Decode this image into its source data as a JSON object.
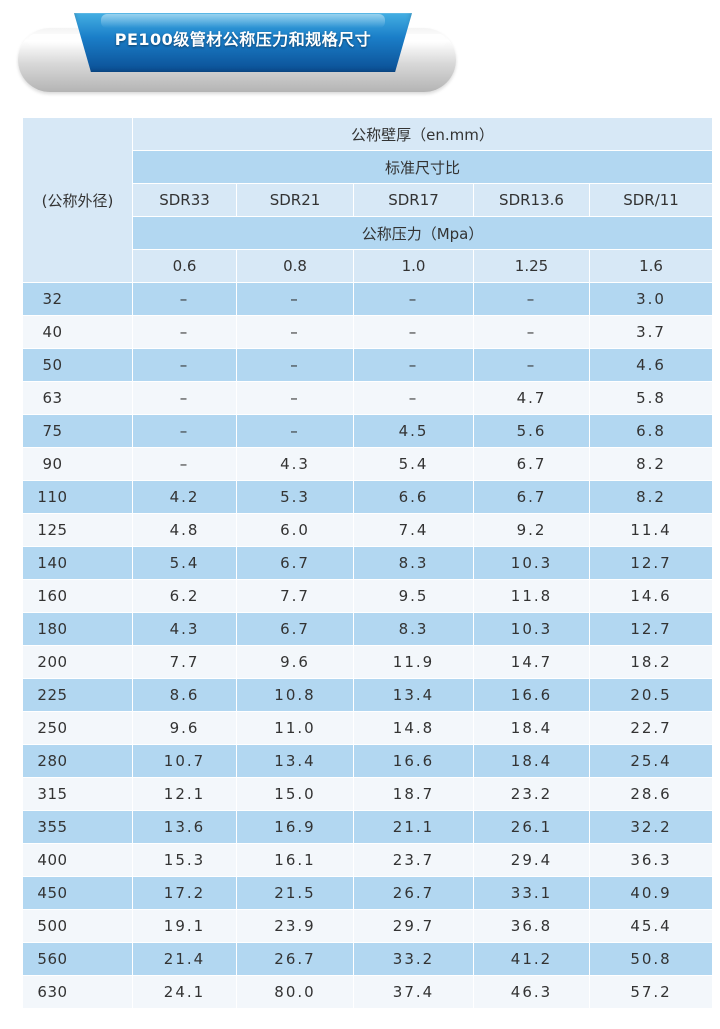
{
  "title": "PE100级管材公称压力和规格尺寸",
  "colors": {
    "accent_blue": "#1b7fc9",
    "row_blue": "#b2d7f1",
    "row_light": "#f3f7fb"
  },
  "header": {
    "od_label": "(公称外径)",
    "wall_label": "公称壁厚（en.mm）",
    "sdr_label": "标准尺寸比",
    "sdr_values": [
      "SDR33",
      "SDR21",
      "SDR17",
      "SDR13.6",
      "SDR/11"
    ],
    "pressure_label": "公称压力（Mpa）",
    "pressure_values": [
      "0.6",
      "0.8",
      "1.0",
      "1.25",
      "1.6"
    ]
  },
  "rows": [
    {
      "od": "32",
      "values": [
        "–",
        "–",
        "–",
        "–",
        "3.0"
      ]
    },
    {
      "od": "40",
      "values": [
        "–",
        "–",
        "–",
        "–",
        "3.7"
      ]
    },
    {
      "od": "50",
      "values": [
        "–",
        "–",
        "–",
        "–",
        "4.6"
      ]
    },
    {
      "od": "63",
      "values": [
        "–",
        "–",
        "–",
        "4.7",
        "5.8"
      ]
    },
    {
      "od": "75",
      "values": [
        "–",
        "–",
        "4.5",
        "5.6",
        "6.8"
      ]
    },
    {
      "od": "90",
      "values": [
        "–",
        "4.3",
        "5.4",
        "6.7",
        "8.2"
      ]
    },
    {
      "od": "110",
      "values": [
        "4.2",
        "5.3",
        "6.6",
        "6.7",
        "8.2"
      ]
    },
    {
      "od": "125",
      "values": [
        "4.8",
        "6.0",
        "7.4",
        "9.2",
        "11.4"
      ]
    },
    {
      "od": "140",
      "values": [
        "5.4",
        "6.7",
        "8.3",
        "10.3",
        "12.7"
      ]
    },
    {
      "od": "160",
      "values": [
        "6.2",
        "7.7",
        "9.5",
        "11.8",
        "14.6"
      ]
    },
    {
      "od": "180",
      "values": [
        "4.3",
        "6.7",
        "8.3",
        "10.3",
        "12.7"
      ]
    },
    {
      "od": "200",
      "values": [
        "7.7",
        "9.6",
        "11.9",
        "14.7",
        "18.2"
      ]
    },
    {
      "od": "225",
      "values": [
        "8.6",
        "10.8",
        "13.4",
        "16.6",
        "20.5"
      ]
    },
    {
      "od": "250",
      "values": [
        "9.6",
        "11.0",
        "14.8",
        "18.4",
        "22.7"
      ]
    },
    {
      "od": "280",
      "values": [
        "10.7",
        "13.4",
        "16.6",
        "18.4",
        "25.4"
      ]
    },
    {
      "od": "315",
      "values": [
        "12.1",
        "15.0",
        "18.7",
        "23.2",
        "28.6"
      ]
    },
    {
      "od": "355",
      "values": [
        "13.6",
        "16.9",
        "21.1",
        "26.1",
        "32.2"
      ]
    },
    {
      "od": "400",
      "values": [
        "15.3",
        "16.1",
        "23.7",
        "29.4",
        "36.3"
      ]
    },
    {
      "od": "450",
      "values": [
        "17.2",
        "21.5",
        "26.7",
        "33.1",
        "40.9"
      ]
    },
    {
      "od": "500",
      "values": [
        "19.1",
        "23.9",
        "29.7",
        "36.8",
        "45.4"
      ]
    },
    {
      "od": "560",
      "values": [
        "21.4",
        "26.7",
        "33.2",
        "41.2",
        "50.8"
      ]
    },
    {
      "od": "630",
      "values": [
        "24.1",
        "80.0",
        "37.4",
        "46.3",
        "57.2"
      ]
    }
  ]
}
